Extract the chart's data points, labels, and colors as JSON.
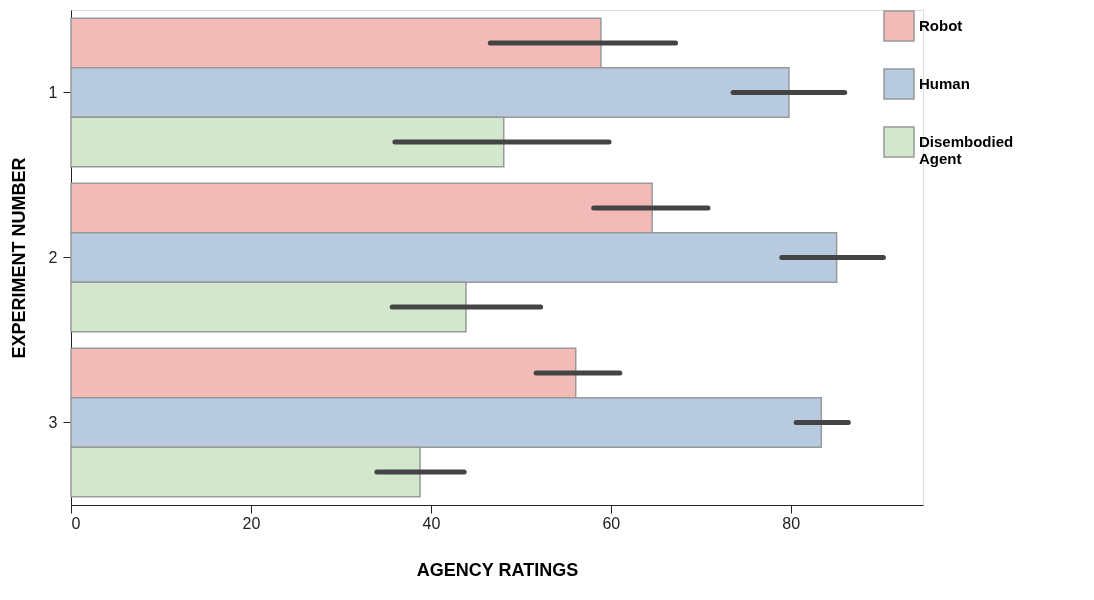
{
  "chart_data": {
    "type": "bar",
    "orientation": "horizontal",
    "xlabel": "AGENCY RATINGS",
    "ylabel": "EXPERIMENT NUMBER",
    "categories": [
      "1",
      "2",
      "3"
    ],
    "series": [
      {
        "name": "Robot",
        "color": "#f2bbb8",
        "values": [
          58.9,
          64.6,
          56.1
        ],
        "errors": [
          [
            46.6,
            67.2
          ],
          [
            58.1,
            70.8
          ],
          [
            51.7,
            61.0
          ]
        ]
      },
      {
        "name": "Human",
        "color": "#b7cadf",
        "values": [
          79.8,
          85.1,
          83.4
        ],
        "errors": [
          [
            73.6,
            86.0
          ],
          [
            79.0,
            90.3
          ],
          [
            80.6,
            86.4
          ]
        ]
      },
      {
        "name": "Disembodied Agent",
        "color": "#d2e7cc",
        "values": [
          48.1,
          43.9,
          38.8
        ],
        "errors": [
          [
            36.0,
            59.8
          ],
          [
            35.7,
            52.2
          ],
          [
            34.0,
            43.7
          ]
        ]
      }
    ],
    "xlim": [
      0,
      94.7
    ],
    "xticks": [
      0,
      20,
      40,
      60,
      80
    ],
    "grid": false,
    "legend": "right"
  }
}
